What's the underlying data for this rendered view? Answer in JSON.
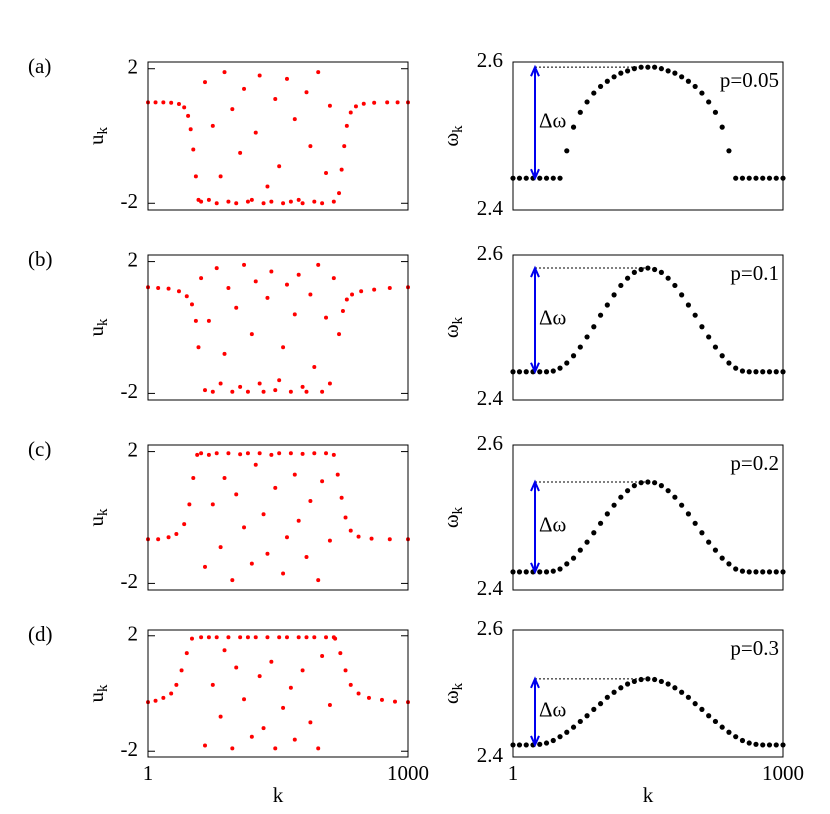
{
  "chart_data": [
    {
      "type": "scatter",
      "panel_label": "(a)",
      "ylabel": "u",
      "ylabel_sub": "k",
      "color": "#ff0000",
      "xlim": [
        1,
        1000
      ],
      "ylim": [
        -2.2,
        2.2
      ],
      "yticks": [
        -2,
        2
      ],
      "x": [
        1,
        30,
        60,
        90,
        120,
        140,
        155,
        165,
        175,
        185,
        195,
        205,
        220,
        235,
        250,
        265,
        280,
        295,
        310,
        325,
        340,
        355,
        370,
        385,
        400,
        415,
        430,
        445,
        460,
        475,
        490,
        505,
        520,
        535,
        550,
        565,
        580,
        595,
        610,
        625,
        640,
        655,
        670,
        685,
        700,
        715,
        735,
        745,
        755,
        765,
        780,
        800,
        830,
        870,
        920,
        960,
        1000
      ],
      "y": [
        1.0,
        1.0,
        1.0,
        0.99,
        0.95,
        0.85,
        0.6,
        0.2,
        -0.4,
        -1.2,
        -1.9,
        -1.95,
        1.6,
        -1.9,
        0.3,
        -2,
        -1.2,
        1.9,
        -1.95,
        0.8,
        -2,
        -0.5,
        1.4,
        -1.95,
        -1.9,
        0.1,
        1.8,
        -2,
        -1.5,
        -1.95,
        1.1,
        -0.9,
        -2,
        1.7,
        -1.95,
        0.5,
        -1.9,
        -2,
        1.3,
        -0.3,
        -1.95,
        1.9,
        -2,
        -1.1,
        0.9,
        -1.95,
        -1.7,
        -1.0,
        -0.3,
        0.3,
        0.7,
        0.88,
        0.96,
        0.99,
        1.0,
        1.0,
        1.0
      ]
    },
    {
      "type": "scatter",
      "ylabel": "ω",
      "ylabel_sub": "k",
      "annotation": "Δω",
      "parameter_label": "p=0.05",
      "color": "#000000",
      "xlim": [
        1,
        1000
      ],
      "ylim": [
        2.4,
        2.6
      ],
      "yticks": [
        2.4,
        2.6
      ],
      "x": [
        1,
        25,
        50,
        75,
        100,
        125,
        150,
        175,
        200,
        225,
        250,
        275,
        300,
        325,
        350,
        375,
        400,
        425,
        450,
        475,
        500,
        525,
        550,
        575,
        600,
        625,
        650,
        675,
        700,
        725,
        750,
        775,
        800,
        825,
        850,
        875,
        900,
        925,
        950,
        975,
        1000
      ],
      "y": [
        2.443,
        2.443,
        2.443,
        2.443,
        2.443,
        2.443,
        2.443,
        2.443,
        2.48,
        2.512,
        2.532,
        2.546,
        2.558,
        2.567,
        2.574,
        2.58,
        2.585,
        2.588,
        2.591,
        2.593,
        2.593,
        2.593,
        2.591,
        2.588,
        2.585,
        2.58,
        2.574,
        2.567,
        2.558,
        2.546,
        2.532,
        2.512,
        2.48,
        2.443,
        2.443,
        2.443,
        2.443,
        2.443,
        2.443,
        2.443,
        2.443
      ]
    },
    {
      "type": "scatter",
      "panel_label": "(b)",
      "ylabel": "u",
      "ylabel_sub": "k",
      "color": "#ff0000",
      "xlim": [
        1,
        1000
      ],
      "ylim": [
        -2.2,
        2.2
      ],
      "yticks": [
        -2,
        2
      ],
      "x": [
        1,
        40,
        80,
        120,
        150,
        170,
        185,
        195,
        205,
        220,
        235,
        250,
        265,
        280,
        295,
        310,
        325,
        340,
        355,
        370,
        385,
        400,
        415,
        430,
        445,
        460,
        475,
        490,
        505,
        520,
        535,
        550,
        565,
        580,
        595,
        610,
        625,
        640,
        655,
        670,
        685,
        700,
        715,
        735,
        750,
        765,
        785,
        820,
        870,
        930,
        1000
      ],
      "y": [
        1.22,
        1.2,
        1.18,
        1.1,
        0.95,
        0.7,
        0.2,
        -0.6,
        1.5,
        -1.9,
        0.2,
        -1.95,
        1.8,
        -1.7,
        -0.8,
        1.2,
        -1.95,
        0.6,
        -1.8,
        1.9,
        -1.95,
        -0.2,
        1.4,
        -1.7,
        -1.95,
        0.9,
        1.7,
        -1.9,
        -1.6,
        -0.6,
        1.3,
        -1.95,
        0.4,
        1.6,
        -1.8,
        -1.95,
        1.0,
        -1.2,
        1.9,
        -1.95,
        0.3,
        -1.7,
        1.5,
        -0.2,
        0.5,
        0.85,
        1.0,
        1.1,
        1.15,
        1.2,
        1.22
      ]
    },
    {
      "type": "scatter",
      "ylabel": "ω",
      "ylabel_sub": "k",
      "annotation": "Δω",
      "parameter_label": "p=0.1",
      "color": "#000000",
      "xlim": [
        1,
        1000
      ],
      "ylim": [
        2.4,
        2.6
      ],
      "yticks": [
        2.4,
        2.6
      ],
      "x": [
        1,
        25,
        50,
        75,
        100,
        125,
        150,
        175,
        200,
        225,
        250,
        275,
        300,
        325,
        350,
        375,
        400,
        425,
        450,
        475,
        500,
        525,
        550,
        575,
        600,
        625,
        650,
        675,
        700,
        725,
        750,
        775,
        800,
        825,
        850,
        875,
        900,
        925,
        950,
        975,
        1000
      ],
      "y": [
        2.439,
        2.439,
        2.439,
        2.439,
        2.439,
        2.439,
        2.44,
        2.444,
        2.451,
        2.461,
        2.473,
        2.487,
        2.501,
        2.517,
        2.531,
        2.545,
        2.558,
        2.568,
        2.576,
        2.58,
        2.582,
        2.58,
        2.576,
        2.568,
        2.558,
        2.545,
        2.531,
        2.517,
        2.501,
        2.487,
        2.473,
        2.461,
        2.451,
        2.444,
        2.44,
        2.439,
        2.439,
        2.439,
        2.439,
        2.439,
        2.439
      ]
    },
    {
      "type": "scatter",
      "panel_label": "(c)",
      "ylabel": "u",
      "ylabel_sub": "k",
      "color": "#ff0000",
      "xlim": [
        1,
        1000
      ],
      "ylim": [
        -2.2,
        2.2
      ],
      "yticks": [
        -2,
        2
      ],
      "x": [
        1,
        40,
        80,
        110,
        140,
        160,
        175,
        190,
        205,
        220,
        235,
        250,
        265,
        280,
        295,
        310,
        325,
        340,
        355,
        370,
        385,
        400,
        415,
        430,
        445,
        460,
        475,
        490,
        505,
        520,
        535,
        550,
        565,
        580,
        595,
        610,
        625,
        640,
        655,
        670,
        685,
        700,
        715,
        730,
        745,
        760,
        780,
        810,
        860,
        930,
        1000
      ],
      "y": [
        -0.66,
        -0.66,
        -0.6,
        -0.5,
        -0.2,
        0.4,
        1.2,
        1.9,
        1.95,
        -1.5,
        1.9,
        0.4,
        1.95,
        -0.9,
        1.2,
        1.95,
        -1.9,
        0.7,
        1.92,
        -0.3,
        1.95,
        -1.4,
        1.6,
        1.95,
        0.1,
        -1.1,
        1.9,
        0.9,
        1.95,
        -1.7,
        -0.6,
        1.95,
        1.3,
        -0.1,
        1.93,
        -1.2,
        0.5,
        1.95,
        -1.9,
        1.1,
        1.95,
        -0.7,
        1.9,
        1.3,
        0.6,
        0.0,
        -0.4,
        -0.58,
        -0.64,
        -0.66,
        -0.66
      ]
    },
    {
      "type": "scatter",
      "ylabel": "ω",
      "ylabel_sub": "k",
      "annotation": "Δω",
      "parameter_label": "p=0.2",
      "color": "#000000",
      "xlim": [
        1,
        1000
      ],
      "ylim": [
        2.4,
        2.6
      ],
      "yticks": [
        2.4,
        2.6
      ],
      "x": [
        1,
        25,
        50,
        75,
        100,
        125,
        150,
        175,
        200,
        225,
        250,
        275,
        300,
        325,
        350,
        375,
        400,
        425,
        450,
        475,
        500,
        525,
        550,
        575,
        600,
        625,
        650,
        675,
        700,
        725,
        750,
        775,
        800,
        825,
        850,
        875,
        900,
        925,
        950,
        975,
        1000
      ],
      "y": [
        2.425,
        2.425,
        2.425,
        2.425,
        2.425,
        2.425,
        2.426,
        2.429,
        2.436,
        2.444,
        2.455,
        2.466,
        2.479,
        2.492,
        2.505,
        2.517,
        2.528,
        2.537,
        2.544,
        2.548,
        2.549,
        2.548,
        2.544,
        2.537,
        2.528,
        2.517,
        2.505,
        2.492,
        2.479,
        2.466,
        2.455,
        2.444,
        2.436,
        2.429,
        2.426,
        2.425,
        2.425,
        2.425,
        2.425,
        2.425,
        2.425
      ]
    },
    {
      "type": "scatter",
      "panel_label": "(d)",
      "ylabel": "u",
      "ylabel_sub": "k",
      "xlabel": "k",
      "color": "#ff0000",
      "xlim": [
        1,
        1000
      ],
      "xticks": [
        1,
        1000
      ],
      "ylim": [
        -2.2,
        2.2
      ],
      "yticks": [
        -2,
        2
      ],
      "x": [
        1,
        30,
        60,
        90,
        110,
        130,
        150,
        170,
        205,
        220,
        235,
        250,
        265,
        280,
        295,
        310,
        325,
        340,
        355,
        370,
        385,
        400,
        415,
        430,
        445,
        460,
        475,
        490,
        505,
        520,
        535,
        550,
        565,
        580,
        595,
        610,
        625,
        640,
        655,
        670,
        685,
        700,
        715,
        720,
        740,
        760,
        780,
        810,
        850,
        900,
        950,
        1000
      ],
      "y": [
        -0.3,
        -0.25,
        -0.15,
        0.0,
        0.3,
        0.8,
        1.4,
        1.9,
        1.95,
        -1.8,
        1.95,
        0.3,
        1.95,
        -0.8,
        1.5,
        1.95,
        -1.9,
        0.9,
        1.95,
        -0.2,
        1.95,
        -1.5,
        1.95,
        0.6,
        -1.2,
        1.95,
        1.1,
        -1.9,
        1.95,
        -0.5,
        1.95,
        0.2,
        -1.6,
        1.95,
        0.8,
        1.95,
        -1.0,
        1.95,
        -1.9,
        1.3,
        1.95,
        -0.4,
        1.95,
        1.9,
        1.4,
        0.8,
        0.3,
        0.0,
        -0.15,
        -0.22,
        -0.28,
        -0.3
      ]
    },
    {
      "type": "scatter",
      "ylabel": "ω",
      "ylabel_sub": "k",
      "xlabel": "k",
      "annotation": "Δω",
      "parameter_label": "p=0.3",
      "color": "#000000",
      "xlim": [
        1,
        1000
      ],
      "xticks": [
        1,
        1000
      ],
      "ylim": [
        2.4,
        2.6
      ],
      "yticks": [
        2.4,
        2.6
      ],
      "x": [
        1,
        25,
        50,
        75,
        100,
        125,
        150,
        175,
        200,
        225,
        250,
        275,
        300,
        325,
        350,
        375,
        400,
        425,
        450,
        475,
        500,
        525,
        550,
        575,
        600,
        625,
        650,
        675,
        700,
        725,
        750,
        775,
        800,
        825,
        850,
        875,
        900,
        925,
        950,
        975,
        1000
      ],
      "y": [
        2.419,
        2.419,
        2.419,
        2.419,
        2.42,
        2.422,
        2.426,
        2.432,
        2.439,
        2.447,
        2.456,
        2.465,
        2.475,
        2.484,
        2.494,
        2.502,
        2.509,
        2.515,
        2.519,
        2.522,
        2.523,
        2.522,
        2.519,
        2.515,
        2.509,
        2.502,
        2.494,
        2.484,
        2.475,
        2.465,
        2.456,
        2.447,
        2.439,
        2.432,
        2.426,
        2.422,
        2.42,
        2.419,
        2.419,
        2.419,
        2.419
      ]
    }
  ]
}
